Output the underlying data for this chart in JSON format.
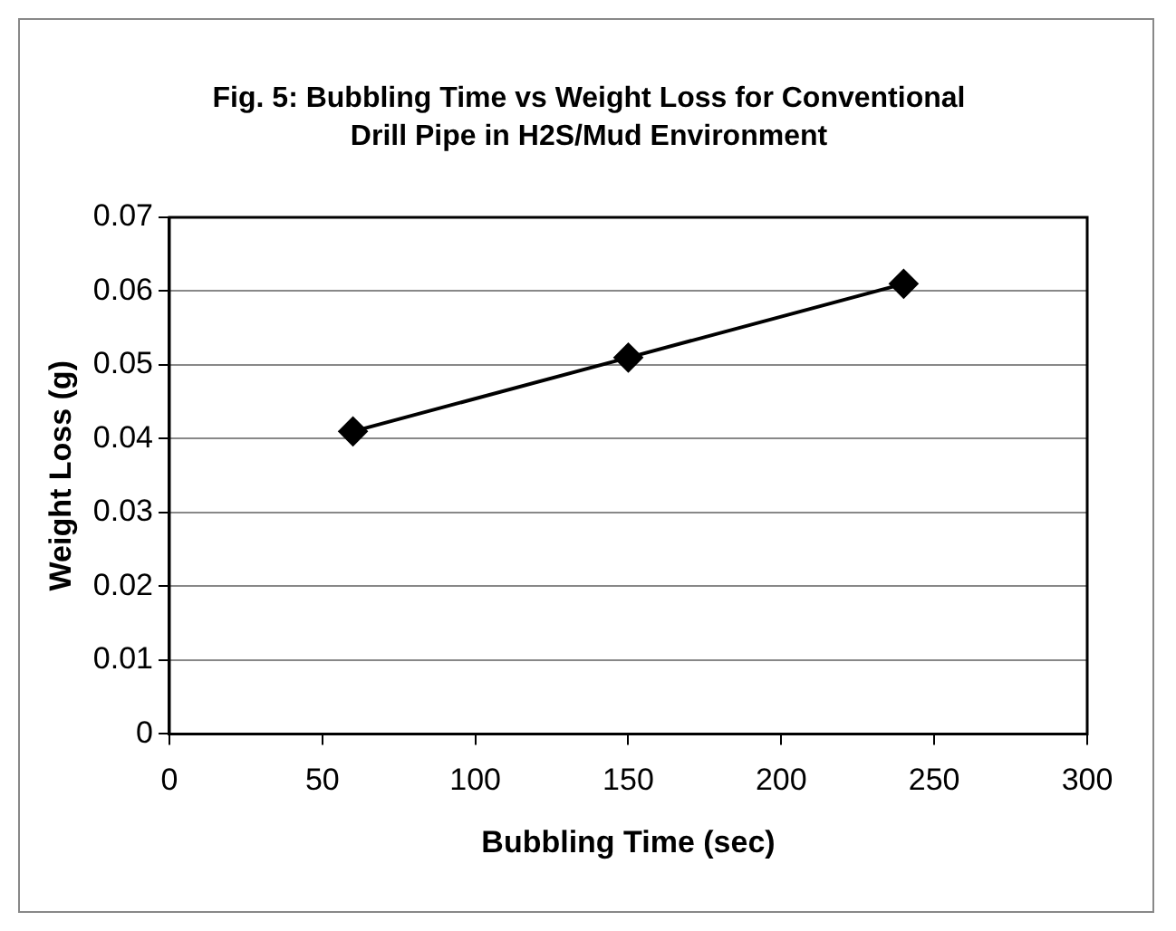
{
  "chart_data": {
    "type": "line",
    "title": "Fig. 5: Bubbling Time vs Weight Loss for Conventional Drill Pipe in H2S/Mud Environment",
    "xlabel": "Bubbling Time (sec)",
    "ylabel": "Weight Loss (g)",
    "x": [
      60,
      150,
      240
    ],
    "series": [
      {
        "color": "#000000",
        "values": [
          0.041,
          0.051,
          0.061
        ]
      }
    ],
    "xlim": [
      0,
      300
    ],
    "xticks": [
      0,
      50,
      100,
      150,
      200,
      250,
      300
    ],
    "ylim": [
      0,
      0.07
    ],
    "yticks": [
      0,
      0.01,
      0.02,
      0.03,
      0.04,
      0.05,
      0.06,
      0.07
    ],
    "grid": "y",
    "legend": false,
    "marker": "diamond",
    "line_style": "solid"
  }
}
